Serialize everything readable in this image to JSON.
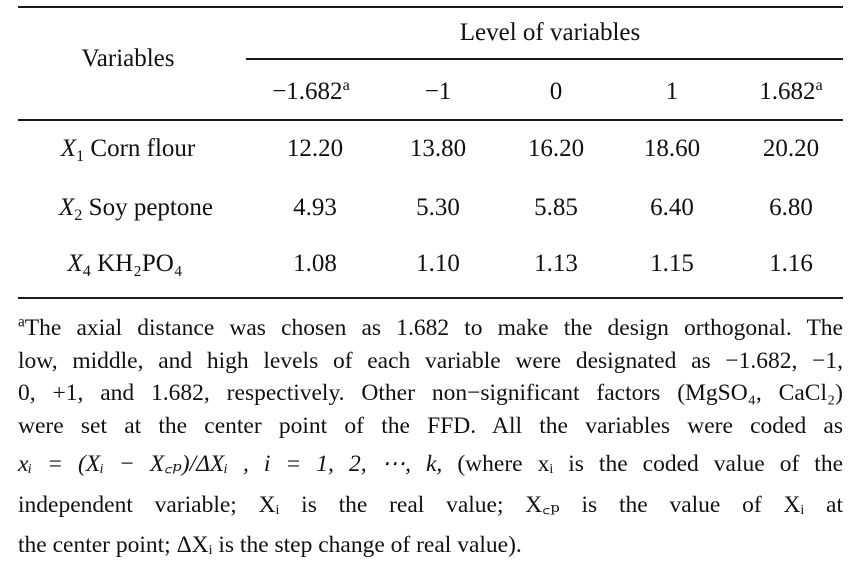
{
  "header": {
    "variables_label": "Variables",
    "group_label": "Level of variables",
    "levels": [
      "−1.682",
      "−1",
      "0",
      "1",
      "1.682"
    ],
    "level_marks": [
      "a",
      "",
      "",
      "",
      "a"
    ]
  },
  "rows": [
    {
      "var_symbol": "X",
      "var_index": "1",
      "var_name": "Corn flour",
      "values": [
        "12.20",
        "13.80",
        "16.20",
        "18.60",
        "20.20"
      ]
    },
    {
      "var_symbol": "X",
      "var_index": "2",
      "var_name": "Soy peptone",
      "values": [
        "4.93",
        "5.30",
        "5.85",
        "6.40",
        "6.80"
      ]
    },
    {
      "var_symbol": "X",
      "var_index": "4",
      "var_name": "KH₂PO₄",
      "values": [
        "1.08",
        "1.10",
        "1.13",
        "1.15",
        "1.16"
      ]
    }
  ],
  "footnote": {
    "mark": "a",
    "line1": "The axial distance was chosen as 1.682 to make the design orthogonal. The",
    "line2": "low, middle, and high levels of each variable were designated as −1.682, −1,",
    "line3": "0, +1, and 1.682, respectively. Other non−significant factors (MgSO₄, CaCl₂)",
    "line4": "were set at the center point of the FFD. All the variables were coded as",
    "formula": "xᵢ = (Xᵢ − X꜀ₚ)/ΔXᵢ , i = 1, 2, ⋯, k,",
    "line5_rest": "(where xᵢ is the coded value of the",
    "line6": "independent variable; Xᵢ is the real value; X꜀ₚ is the value of Xᵢ at",
    "line7": "the center point; ΔXᵢ is the step change of real value)."
  }
}
